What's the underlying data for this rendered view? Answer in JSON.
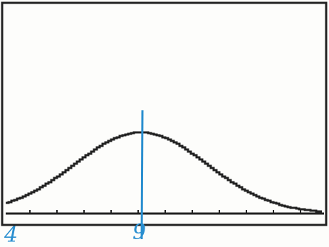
{
  "annotations": {
    "left_label": "4",
    "mean_label": "9"
  }
}
